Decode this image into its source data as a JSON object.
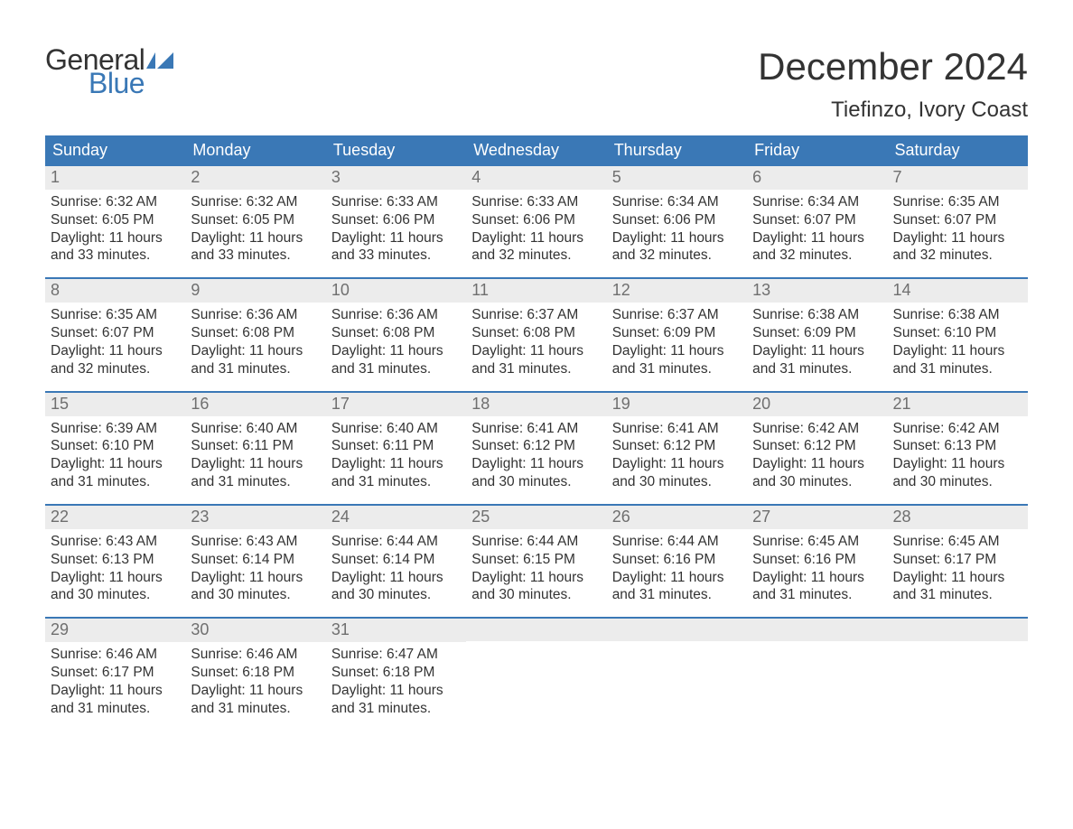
{
  "logo": {
    "text1": "General",
    "text2": "Blue",
    "flag_color": "#3a78b6"
  },
  "title": "December 2024",
  "location": "Tiefinzo, Ivory Coast",
  "colors": {
    "header_bg": "#3a78b6",
    "header_text": "#ffffff",
    "daynum_bg": "#ececec",
    "daynum_text": "#6f6f6f",
    "body_text": "#333333",
    "week_border": "#3a78b6",
    "page_bg": "#ffffff"
  },
  "day_headers": [
    "Sunday",
    "Monday",
    "Tuesday",
    "Wednesday",
    "Thursday",
    "Friday",
    "Saturday"
  ],
  "labels": {
    "sunrise": "Sunrise: ",
    "sunset": "Sunset: ",
    "daylight": "Daylight: "
  },
  "weeks": [
    [
      {
        "n": "1",
        "sunrise": "6:32 AM",
        "sunset": "6:05 PM",
        "daylight": "11 hours and 33 minutes."
      },
      {
        "n": "2",
        "sunrise": "6:32 AM",
        "sunset": "6:05 PM",
        "daylight": "11 hours and 33 minutes."
      },
      {
        "n": "3",
        "sunrise": "6:33 AM",
        "sunset": "6:06 PM",
        "daylight": "11 hours and 33 minutes."
      },
      {
        "n": "4",
        "sunrise": "6:33 AM",
        "sunset": "6:06 PM",
        "daylight": "11 hours and 32 minutes."
      },
      {
        "n": "5",
        "sunrise": "6:34 AM",
        "sunset": "6:06 PM",
        "daylight": "11 hours and 32 minutes."
      },
      {
        "n": "6",
        "sunrise": "6:34 AM",
        "sunset": "6:07 PM",
        "daylight": "11 hours and 32 minutes."
      },
      {
        "n": "7",
        "sunrise": "6:35 AM",
        "sunset": "6:07 PM",
        "daylight": "11 hours and 32 minutes."
      }
    ],
    [
      {
        "n": "8",
        "sunrise": "6:35 AM",
        "sunset": "6:07 PM",
        "daylight": "11 hours and 32 minutes."
      },
      {
        "n": "9",
        "sunrise": "6:36 AM",
        "sunset": "6:08 PM",
        "daylight": "11 hours and 31 minutes."
      },
      {
        "n": "10",
        "sunrise": "6:36 AM",
        "sunset": "6:08 PM",
        "daylight": "11 hours and 31 minutes."
      },
      {
        "n": "11",
        "sunrise": "6:37 AM",
        "sunset": "6:08 PM",
        "daylight": "11 hours and 31 minutes."
      },
      {
        "n": "12",
        "sunrise": "6:37 AM",
        "sunset": "6:09 PM",
        "daylight": "11 hours and 31 minutes."
      },
      {
        "n": "13",
        "sunrise": "6:38 AM",
        "sunset": "6:09 PM",
        "daylight": "11 hours and 31 minutes."
      },
      {
        "n": "14",
        "sunrise": "6:38 AM",
        "sunset": "6:10 PM",
        "daylight": "11 hours and 31 minutes."
      }
    ],
    [
      {
        "n": "15",
        "sunrise": "6:39 AM",
        "sunset": "6:10 PM",
        "daylight": "11 hours and 31 minutes."
      },
      {
        "n": "16",
        "sunrise": "6:40 AM",
        "sunset": "6:11 PM",
        "daylight": "11 hours and 31 minutes."
      },
      {
        "n": "17",
        "sunrise": "6:40 AM",
        "sunset": "6:11 PM",
        "daylight": "11 hours and 31 minutes."
      },
      {
        "n": "18",
        "sunrise": "6:41 AM",
        "sunset": "6:12 PM",
        "daylight": "11 hours and 30 minutes."
      },
      {
        "n": "19",
        "sunrise": "6:41 AM",
        "sunset": "6:12 PM",
        "daylight": "11 hours and 30 minutes."
      },
      {
        "n": "20",
        "sunrise": "6:42 AM",
        "sunset": "6:12 PM",
        "daylight": "11 hours and 30 minutes."
      },
      {
        "n": "21",
        "sunrise": "6:42 AM",
        "sunset": "6:13 PM",
        "daylight": "11 hours and 30 minutes."
      }
    ],
    [
      {
        "n": "22",
        "sunrise": "6:43 AM",
        "sunset": "6:13 PM",
        "daylight": "11 hours and 30 minutes."
      },
      {
        "n": "23",
        "sunrise": "6:43 AM",
        "sunset": "6:14 PM",
        "daylight": "11 hours and 30 minutes."
      },
      {
        "n": "24",
        "sunrise": "6:44 AM",
        "sunset": "6:14 PM",
        "daylight": "11 hours and 30 minutes."
      },
      {
        "n": "25",
        "sunrise": "6:44 AM",
        "sunset": "6:15 PM",
        "daylight": "11 hours and 30 minutes."
      },
      {
        "n": "26",
        "sunrise": "6:44 AM",
        "sunset": "6:16 PM",
        "daylight": "11 hours and 31 minutes."
      },
      {
        "n": "27",
        "sunrise": "6:45 AM",
        "sunset": "6:16 PM",
        "daylight": "11 hours and 31 minutes."
      },
      {
        "n": "28",
        "sunrise": "6:45 AM",
        "sunset": "6:17 PM",
        "daylight": "11 hours and 31 minutes."
      }
    ],
    [
      {
        "n": "29",
        "sunrise": "6:46 AM",
        "sunset": "6:17 PM",
        "daylight": "11 hours and 31 minutes."
      },
      {
        "n": "30",
        "sunrise": "6:46 AM",
        "sunset": "6:18 PM",
        "daylight": "11 hours and 31 minutes."
      },
      {
        "n": "31",
        "sunrise": "6:47 AM",
        "sunset": "6:18 PM",
        "daylight": "11 hours and 31 minutes."
      },
      null,
      null,
      null,
      null
    ]
  ]
}
